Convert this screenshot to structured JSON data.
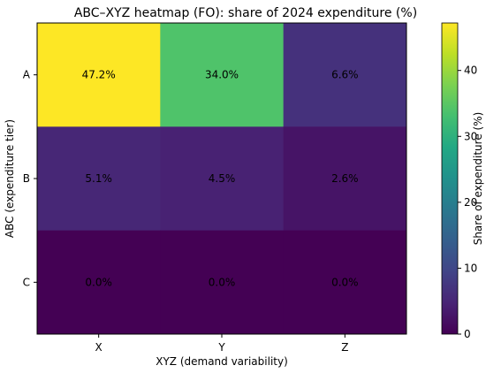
{
  "chart_data": {
    "type": "heatmap",
    "title": "ABC–XYZ heatmap (FO): share of 2024 expenditure (%)",
    "xlabel": "XYZ (demand variability)",
    "ylabel": "ABC (expenditure tier)",
    "x_categories": [
      "X",
      "Y",
      "Z"
    ],
    "y_categories": [
      "A",
      "B",
      "C"
    ],
    "values": [
      [
        47.2,
        34.0,
        6.6
      ],
      [
        5.1,
        4.5,
        2.6
      ],
      [
        0.0,
        0.0,
        0.0
      ]
    ],
    "cell_labels": [
      [
        "47.2%",
        "34.0%",
        "6.6%"
      ],
      [
        "5.1%",
        "4.5%",
        "2.6%"
      ],
      [
        "0.0%",
        "0.0%",
        "0.0%"
      ]
    ],
    "colorbar": {
      "label": "Share of expenditure (%)",
      "colormap": "viridis",
      "range": [
        0,
        47.2
      ],
      "ticks": [
        0,
        10,
        20,
        30,
        40
      ],
      "tick_labels": [
        "0",
        "10",
        "20",
        "30",
        "40"
      ]
    }
  }
}
